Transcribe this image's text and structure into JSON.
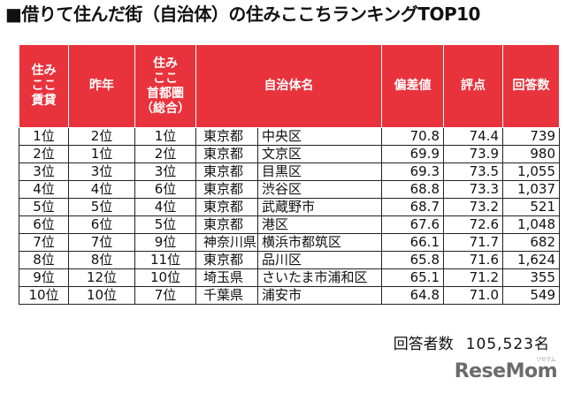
{
  "title": "■借りて住んだ街（自治体）の住みここちランキングTOP10",
  "table": {
    "headers": {
      "rent_rank": [
        "住み",
        "ここ",
        "賃貸"
      ],
      "last_year": [
        "昨年"
      ],
      "capital_rank": [
        "住み",
        "ここ",
        "首都圏",
        "（総合）"
      ],
      "municipality": [
        "自治体名"
      ],
      "deviation": [
        "偏差値"
      ],
      "score": [
        "評点"
      ],
      "responses": [
        "回答数"
      ]
    },
    "rows": [
      {
        "rank": "1位",
        "last_year": "2位",
        "capital": "1位",
        "pref": "東京都",
        "city": "中央区",
        "deviation": "70.8",
        "score": "74.4",
        "responses": "739"
      },
      {
        "rank": "2位",
        "last_year": "1位",
        "capital": "2位",
        "pref": "東京都",
        "city": "文京区",
        "deviation": "69.9",
        "score": "73.9",
        "responses": "980"
      },
      {
        "rank": "3位",
        "last_year": "3位",
        "capital": "3位",
        "pref": "東京都",
        "city": "目黒区",
        "deviation": "69.3",
        "score": "73.5",
        "responses": "1,055"
      },
      {
        "rank": "4位",
        "last_year": "4位",
        "capital": "6位",
        "pref": "東京都",
        "city": "渋谷区",
        "deviation": "68.8",
        "score": "73.3",
        "responses": "1,037"
      },
      {
        "rank": "5位",
        "last_year": "5位",
        "capital": "4位",
        "pref": "東京都",
        "city": "武蔵野市",
        "deviation": "68.7",
        "score": "73.2",
        "responses": "521"
      },
      {
        "rank": "6位",
        "last_year": "6位",
        "capital": "5位",
        "pref": "東京都",
        "city": "港区",
        "deviation": "67.6",
        "score": "72.6",
        "responses": "1,048"
      },
      {
        "rank": "7位",
        "last_year": "7位",
        "capital": "9位",
        "pref": "神奈川県",
        "city": "横浜市都筑区",
        "deviation": "66.1",
        "score": "71.7",
        "responses": "682"
      },
      {
        "rank": "8位",
        "last_year": "8位",
        "capital": "11位",
        "pref": "東京都",
        "city": "品川区",
        "deviation": "65.8",
        "score": "71.6",
        "responses": "1,624"
      },
      {
        "rank": "9位",
        "last_year": "12位",
        "capital": "10位",
        "pref": "埼玉県",
        "city": "さいたま市浦和区",
        "deviation": "65.1",
        "score": "71.2",
        "responses": "355"
      },
      {
        "rank": "10位",
        "last_year": "10位",
        "capital": "7位",
        "pref": "千葉県",
        "city": "浦安市",
        "deviation": "64.8",
        "score": "71.0",
        "responses": "549"
      }
    ]
  },
  "footer": {
    "label": "回答者数",
    "count": "105,523名"
  },
  "logo": {
    "text": "ReseMom",
    "sub": "リセマム"
  },
  "colors": {
    "header_bg": "#e8323c",
    "header_text": "#ffffff",
    "border": "#222222"
  }
}
